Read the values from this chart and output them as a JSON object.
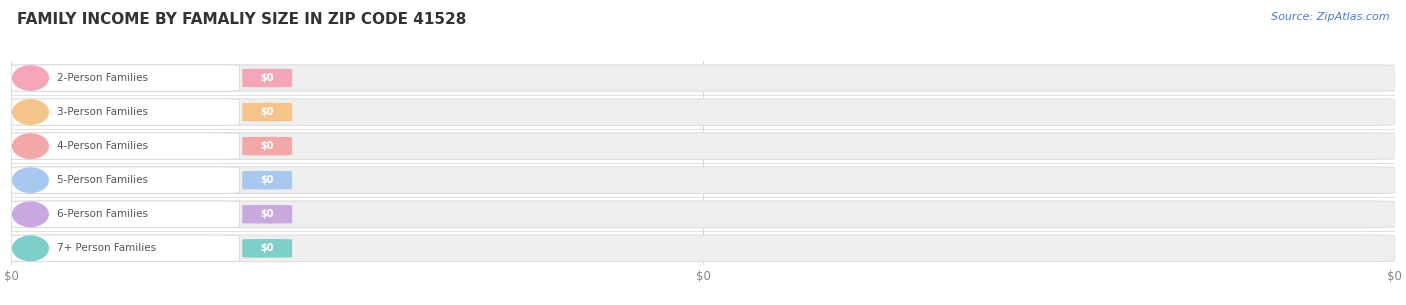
{
  "title": "FAMILY INCOME BY FAMALIY SIZE IN ZIP CODE 41528",
  "source": "Source: ZipAtlas.com",
  "categories": [
    "2-Person Families",
    "3-Person Families",
    "4-Person Families",
    "5-Person Families",
    "6-Person Families",
    "7+ Person Families"
  ],
  "values": [
    0,
    0,
    0,
    0,
    0,
    0
  ],
  "bar_colors": [
    "#f4a7b9",
    "#f5c48a",
    "#f2a8a8",
    "#a8c8f0",
    "#c9a8e0",
    "#7ececa"
  ],
  "bg_color": "#ffffff",
  "bar_bg_color": "#efefef",
  "bar_bg_edge_color": "#e0e0e0",
  "title_fontsize": 11,
  "label_fontsize": 7.5,
  "source_fontsize": 8,
  "xlim_max": 1.0,
  "xtick_positions": [
    0.0,
    0.5,
    1.0
  ],
  "xtick_labels": [
    "$0",
    "$0",
    "$0"
  ],
  "grid_line_color": "#d5d5d5",
  "label_text_color": "#555555",
  "badge_text_color": "#ffffff",
  "source_color": "#4a7dc9"
}
